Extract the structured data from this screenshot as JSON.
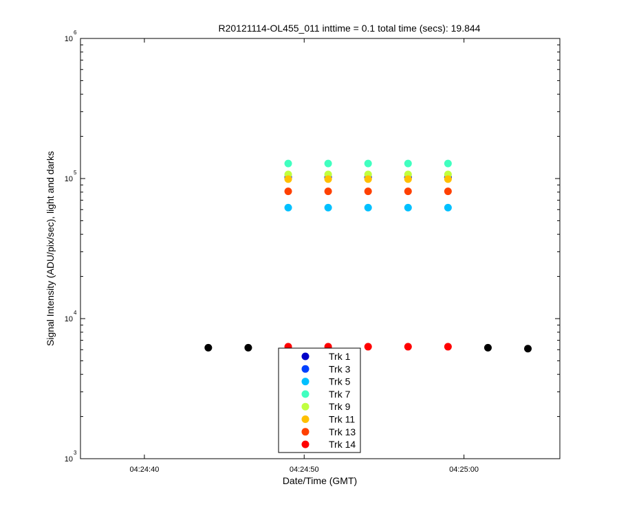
{
  "chart_data": {
    "type": "scatter",
    "title": "R20121114-OL455_011 inttime = 0.1 total time (secs): 19.844",
    "xlabel": "Date/Time (GMT)",
    "ylabel": "Signal Intensity (ADU/pix/sec), light and darks",
    "y_scale": "log",
    "ylim": [
      1000,
      1000000
    ],
    "xlim": [
      "04:24:36",
      "04:25:06"
    ],
    "x_ticks": [
      "04:24:40",
      "04:24:50",
      "04:25:00"
    ],
    "y_ticks": [
      {
        "base": "10",
        "exp": "3",
        "value": 1000
      },
      {
        "base": "10",
        "exp": "4",
        "value": 10000
      },
      {
        "base": "10",
        "exp": "5",
        "value": 100000
      },
      {
        "base": "10",
        "exp": "6",
        "value": 1000000
      }
    ],
    "grid": false,
    "legend_position": "bottom-center",
    "series": [
      {
        "name": "Trk 1",
        "color": "#0000c8",
        "x": [
          "04:24:49.0",
          "04:24:51.5",
          "04:24:54.0",
          "04:24:56.5",
          "04:24:59.0"
        ],
        "y": [
          102000,
          102000,
          102000,
          102000,
          102000
        ]
      },
      {
        "name": "Trk 3",
        "color": "#0040ff",
        "x": [
          "04:24:49.0",
          "04:24:51.5",
          "04:24:54.0",
          "04:24:56.5",
          "04:24:59.0"
        ],
        "y": [
          102000,
          102000,
          102000,
          102000,
          102000
        ]
      },
      {
        "name": "Trk 5",
        "color": "#00c0ff",
        "x": [
          "04:24:49.0",
          "04:24:51.5",
          "04:24:54.0",
          "04:24:56.5",
          "04:24:59.0"
        ],
        "y": [
          62000,
          62000,
          62000,
          62000,
          62000
        ]
      },
      {
        "name": "Trk 7",
        "color": "#40ffc0",
        "x": [
          "04:24:49.0",
          "04:24:51.5",
          "04:24:54.0",
          "04:24:56.5",
          "04:24:59.0"
        ],
        "y": [
          128000,
          128000,
          128000,
          128000,
          128000
        ]
      },
      {
        "name": "Trk 9",
        "color": "#c0ff40",
        "x": [
          "04:24:49.0",
          "04:24:51.5",
          "04:24:54.0",
          "04:24:56.5",
          "04:24:59.0"
        ],
        "y": [
          107000,
          107000,
          107000,
          107000,
          107000
        ]
      },
      {
        "name": "Trk 11",
        "color": "#ffc000",
        "x": [
          "04:24:49.0",
          "04:24:51.5",
          "04:24:54.0",
          "04:24:56.5",
          "04:24:59.0"
        ],
        "y": [
          99000,
          99000,
          99000,
          99000,
          99000
        ]
      },
      {
        "name": "Trk 13",
        "color": "#ff4000",
        "x": [
          "04:24:49.0",
          "04:24:51.5",
          "04:24:54.0",
          "04:24:56.5",
          "04:24:59.0"
        ],
        "y": [
          81000,
          81000,
          81000,
          81000,
          81000
        ]
      },
      {
        "name": "Trk 14",
        "color": "#ff0000",
        "x": [
          "04:24:49.0",
          "04:24:51.5",
          "04:24:54.0",
          "04:24:56.5",
          "04:24:59.0"
        ],
        "y": [
          6300,
          6300,
          6300,
          6300,
          6300
        ]
      },
      {
        "color": "#000000",
        "x": [
          "04:24:44.0",
          "04:24:46.5",
          "04:25:01.5",
          "04:25:04.0"
        ],
        "y": [
          6200,
          6200,
          6200,
          6100
        ]
      }
    ]
  }
}
